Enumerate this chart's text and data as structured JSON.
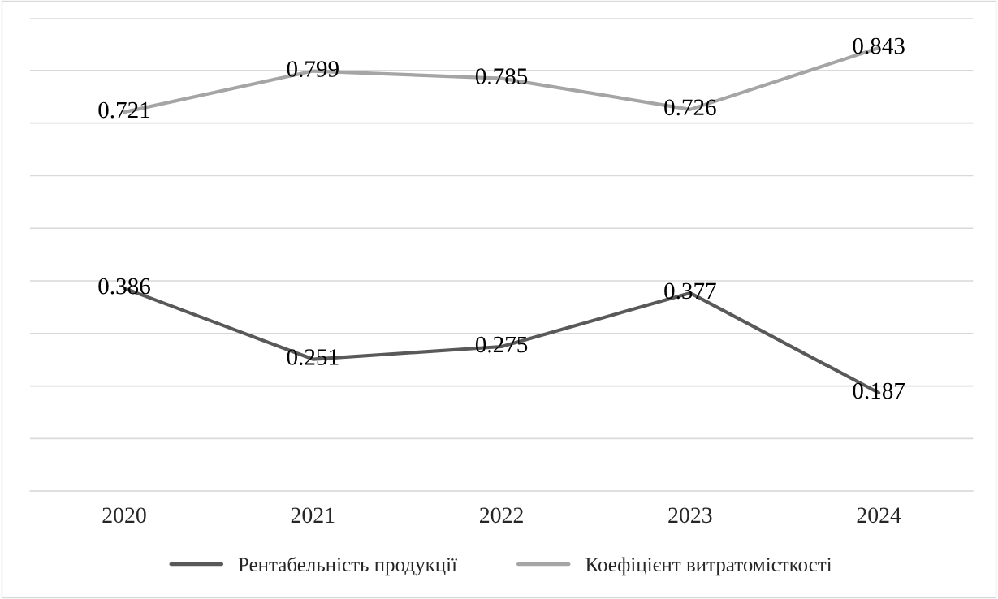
{
  "chart_data": {
    "type": "line",
    "categories": [
      "2020",
      "2021",
      "2022",
      "2023",
      "2024"
    ],
    "series": [
      {
        "name": "Рентабельність продукції",
        "color": "#595959",
        "values": [
          0.386,
          0.251,
          0.275,
          0.377,
          0.187
        ]
      },
      {
        "name": "Коефіцієнт витратомісткості",
        "color": "#a5a5a5",
        "values": [
          0.721,
          0.799,
          0.785,
          0.726,
          0.843
        ]
      }
    ],
    "ylim": [
      0,
      0.9
    ],
    "yticks": [
      {
        "value": 0,
        "label": null
      },
      {
        "value": 0.1,
        "label": null
      },
      {
        "value": 0.2,
        "label": null
      },
      {
        "value": 0.3,
        "label": null
      },
      {
        "value": 0.4,
        "label": null
      },
      {
        "value": 0.5,
        "label": null
      },
      {
        "value": 0.6,
        "label": null
      },
      {
        "value": 0.7,
        "label": null
      },
      {
        "value": 0.8,
        "label": null
      },
      {
        "value": 0.9,
        "label": null
      }
    ],
    "tick_labels": "x",
    "grid": "y",
    "legend": "bottom",
    "data_labels": true,
    "line_style": "solid",
    "marker": "none"
  }
}
